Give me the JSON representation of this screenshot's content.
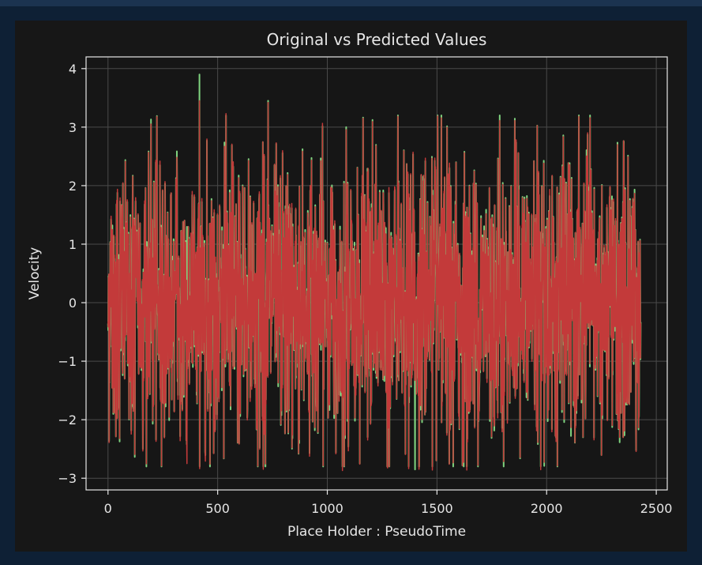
{
  "chart_data": {
    "type": "line",
    "title": "Original vs Predicted Values",
    "xlabel": "Place Holder : PseudoTime",
    "ylabel": "Velocity",
    "xlim": [
      -100,
      2550
    ],
    "ylim": [
      -3.2,
      4.2
    ],
    "xticks": [
      0,
      500,
      1000,
      1500,
      2000,
      2500
    ],
    "xtick_labels": [
      "0",
      "500",
      "1000",
      "1500",
      "2000",
      "2500"
    ],
    "yticks": [
      -3,
      -2,
      -1,
      0,
      1,
      2,
      3,
      4
    ],
    "ytick_labels": [
      "−3",
      "−2",
      "−1",
      "0",
      "1",
      "2",
      "3",
      "4"
    ],
    "grid": true,
    "legend": "none",
    "n_points": 2430,
    "series": [
      {
        "role": "original",
        "color": "#7fd37f",
        "notable_points": [
          {
            "x": 417,
            "y": 3.9
          },
          {
            "x": 730,
            "y": 3.45
          },
          {
            "x": 1400,
            "y": -2.85
          }
        ]
      },
      {
        "role": "predicted",
        "color": "#c33a3a",
        "notable_points": [
          {
            "x": 417,
            "y": 3.45
          },
          {
            "x": 730,
            "y": 3.42
          },
          {
            "x": 360,
            "y": -2.75
          }
        ]
      }
    ],
    "colors": {
      "page_background": "#0e2035",
      "plot_background": "#161616",
      "figure_background": "#171717",
      "grid": "#4a4a4a",
      "axes": "#e6e6e6",
      "text": "#e6e6e6"
    }
  }
}
